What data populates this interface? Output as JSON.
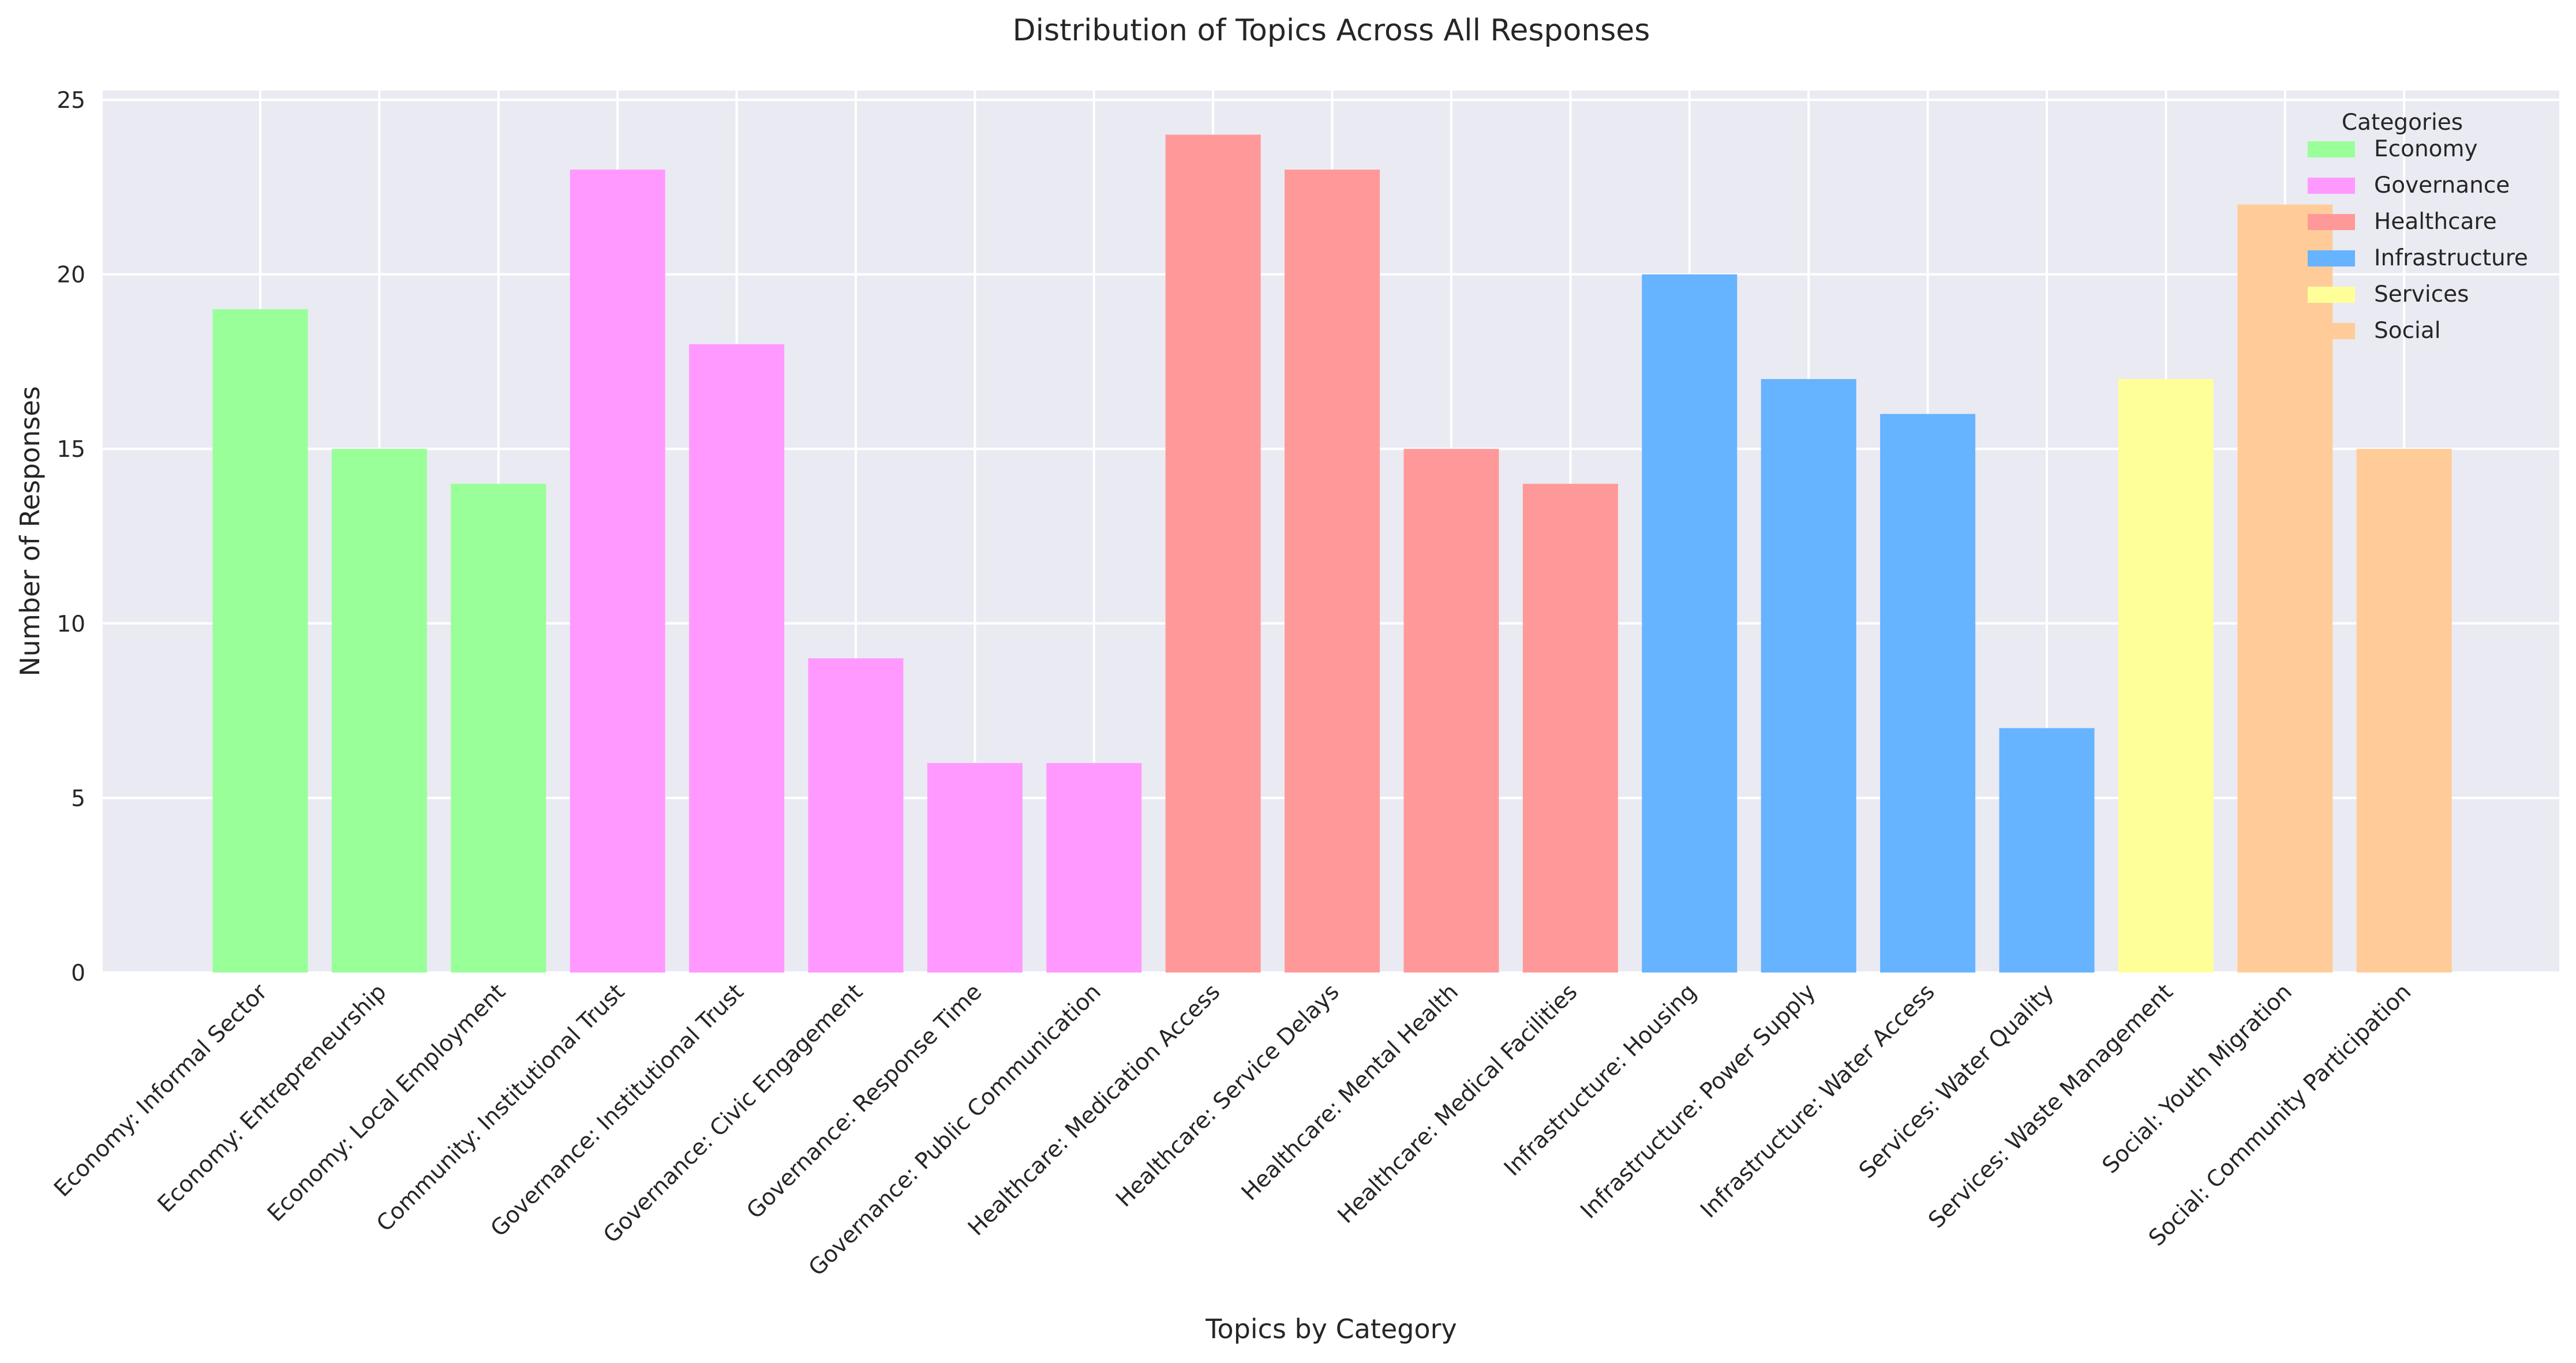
{
  "chart_data": {
    "type": "bar",
    "title": "Distribution of Topics Across All Responses",
    "xlabel": "Topics by Category",
    "ylabel": "Number of Responses",
    "ylim": [
      0,
      25
    ],
    "yticks": [
      "0",
      "5",
      "10",
      "15",
      "20",
      "25"
    ],
    "grid": true,
    "legend": {
      "title": "Categories",
      "placement": "top-right",
      "entries": [
        "Economy",
        "Governance",
        "Healthcare",
        "Infrastructure",
        "Services",
        "Social"
      ]
    },
    "colors": {
      "Economy": "#99ff99",
      "Governance": "#ff99ff",
      "Healthcare": "#ff9999",
      "Infrastructure": "#66b3ff",
      "Services": "#ffff99",
      "Social": "#ffcc99"
    },
    "categories": [
      "Economy: Informal Sector",
      "Economy: Entrepreneurship",
      "Economy: Local Employment",
      "Community: Institutional Trust",
      "Governance: Institutional Trust",
      "Governance: Civic Engagement",
      "Governance: Response Time",
      "Governance: Public Communication",
      "Healthcare: Medication Access",
      "Healthcare: Service Delays",
      "Healthcare: Mental Health",
      "Healthcare: Medical Facilities",
      "Infrastructure: Housing",
      "Infrastructure: Power Supply",
      "Infrastructure: Water Access",
      "Services: Water Quality",
      "Services: Waste Management",
      "Social: Youth Migration",
      "Social: Community Participation"
    ],
    "values": [
      19,
      15,
      14,
      23,
      18,
      9,
      6,
      6,
      24,
      23,
      15,
      14,
      20,
      17,
      16,
      7,
      17,
      22,
      15
    ],
    "bar_groups": [
      "Economy",
      "Economy",
      "Economy",
      "Governance",
      "Governance",
      "Governance",
      "Governance",
      "Governance",
      "Healthcare",
      "Healthcare",
      "Healthcare",
      "Healthcare",
      "Infrastructure",
      "Infrastructure",
      "Infrastructure",
      "Infrastructure",
      "Services",
      "Social",
      "Social"
    ]
  }
}
